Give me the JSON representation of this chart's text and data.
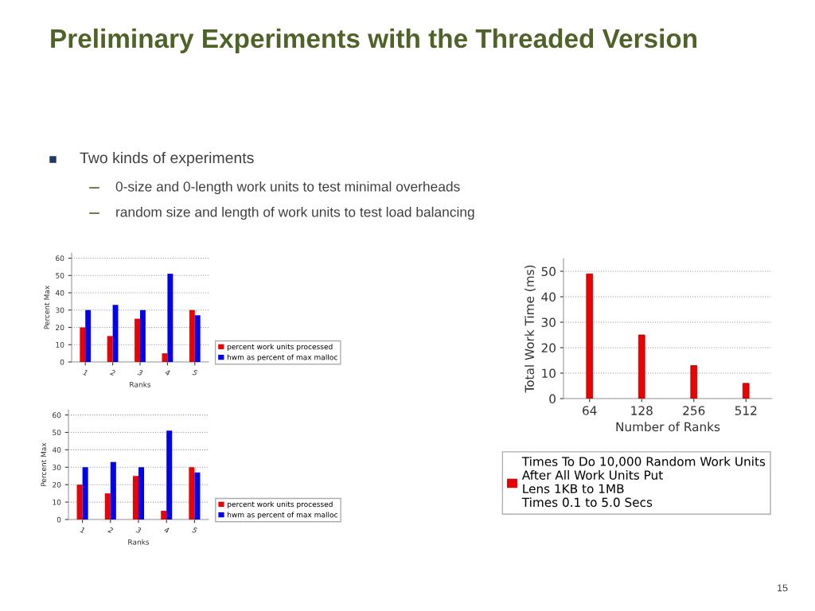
{
  "chart_data": [
    {
      "type": "bar",
      "title": "Preliminary Experiments with the Threaded Version",
      "annotations": [
        "Two kinds of experiments",
        "0-size and 0-length work units to test minimal overheads",
        "random size and length of work units to test load balancing",
        "15"
      ],
      "categories": [
        "1",
        "2",
        "3",
        "4",
        "5"
      ],
      "xlabel": "Ranks",
      "ylabel": "Percent Max",
      "series": [
        {
          "name": "percent work units processed",
          "color": "#ee0000",
          "values": [
            20,
            15,
            25,
            5,
            30
          ]
        },
        {
          "name": "hwm as percent of max malloc",
          "color": "#0000ee",
          "values": [
            30,
            33,
            30,
            51,
            27
          ]
        }
      ],
      "ylim": [
        0,
        63
      ],
      "yticks": [
        0,
        10,
        20,
        30,
        40,
        50,
        60
      ],
      "grid": "y",
      "legend": "right"
    },
    {
      "type": "bar",
      "categories": [
        "1",
        "2",
        "3",
        "4",
        "5"
      ],
      "xlabel": "Ranks",
      "ylabel": "Percent Max",
      "series": [
        {
          "name": "percent work units processed",
          "color": "#ee0000",
          "values": [
            20,
            15,
            25,
            5,
            30
          ]
        },
        {
          "name": "hwm as percent of max malloc",
          "color": "#0000ee",
          "values": [
            30,
            33,
            30,
            51,
            27
          ]
        }
      ],
      "ylim": [
        0,
        63
      ],
      "yticks": [
        0,
        10,
        20,
        30,
        40,
        50,
        60
      ],
      "grid": "y",
      "legend": "right"
    },
    {
      "type": "bar",
      "categories": [
        "64",
        "128",
        "256",
        "512"
      ],
      "xlabel": "Number of Ranks",
      "ylabel": "Total Work Time (ms)",
      "series": [
        {
          "name": "Times To Do 10,000 Random Work Units\nAfter All Work Units Put\nLens 1KB to 1MB\nTimes 0.1 to 5.0 Secs",
          "color": "#ee0000",
          "values": [
            49,
            25,
            13,
            6
          ]
        }
      ],
      "ylim": [
        0,
        55
      ],
      "yticks": [
        0,
        10,
        20,
        30,
        40,
        50
      ],
      "grid": "y",
      "legend": "bottom"
    }
  ]
}
